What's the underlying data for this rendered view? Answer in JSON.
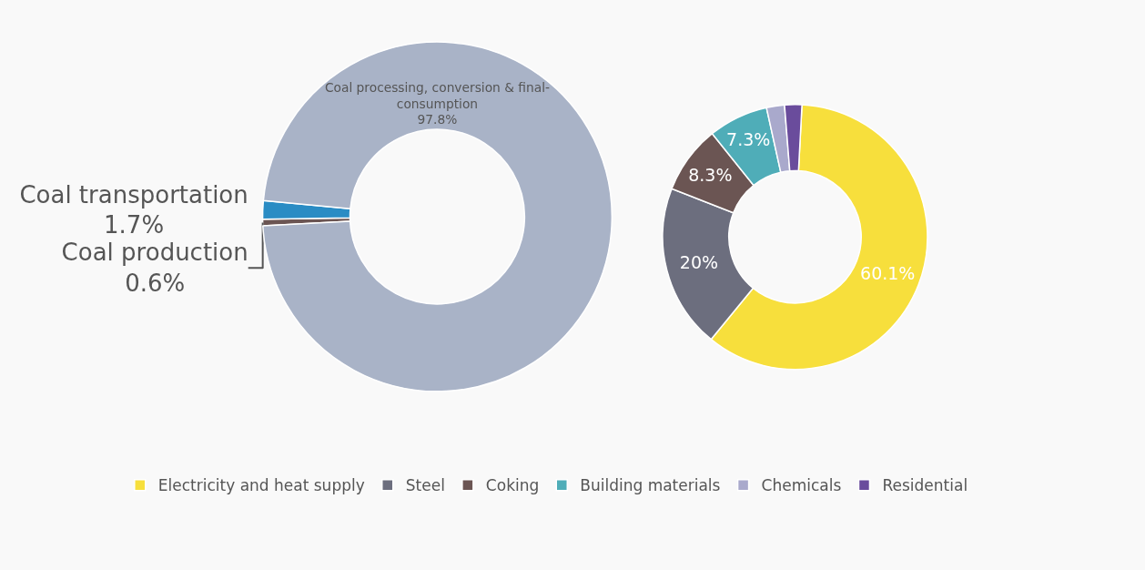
{
  "chart_data": [
    {
      "type": "donut",
      "categories": [
        "Coal production",
        "Coal transportation",
        "Coal processing, conversion & final-consumption"
      ],
      "values": [
        0.6,
        1.7,
        97.8
      ],
      "colors": [
        "#6b5553",
        "#2a8cc4",
        "#a9b3c7"
      ],
      "value_labels": [
        "0.6%",
        "1.7%",
        "97.8%"
      ],
      "legend": false
    },
    {
      "type": "donut",
      "categories": [
        "Electricity and heat supply",
        "Steel",
        "Coking",
        "Building materials",
        "Chemicals",
        "Residential"
      ],
      "values": [
        60.1,
        20,
        8.3,
        7.3,
        2.2,
        2.1
      ],
      "colors": [
        "#f7df3c",
        "#6c6e7e",
        "#6b5553",
        "#4fadb8",
        "#a9a9cc",
        "#6a4c9c"
      ],
      "value_labels": [
        "60.1%",
        "20%",
        "8.3%",
        "7.3%",
        null,
        null
      ],
      "legend": "bottom"
    }
  ]
}
